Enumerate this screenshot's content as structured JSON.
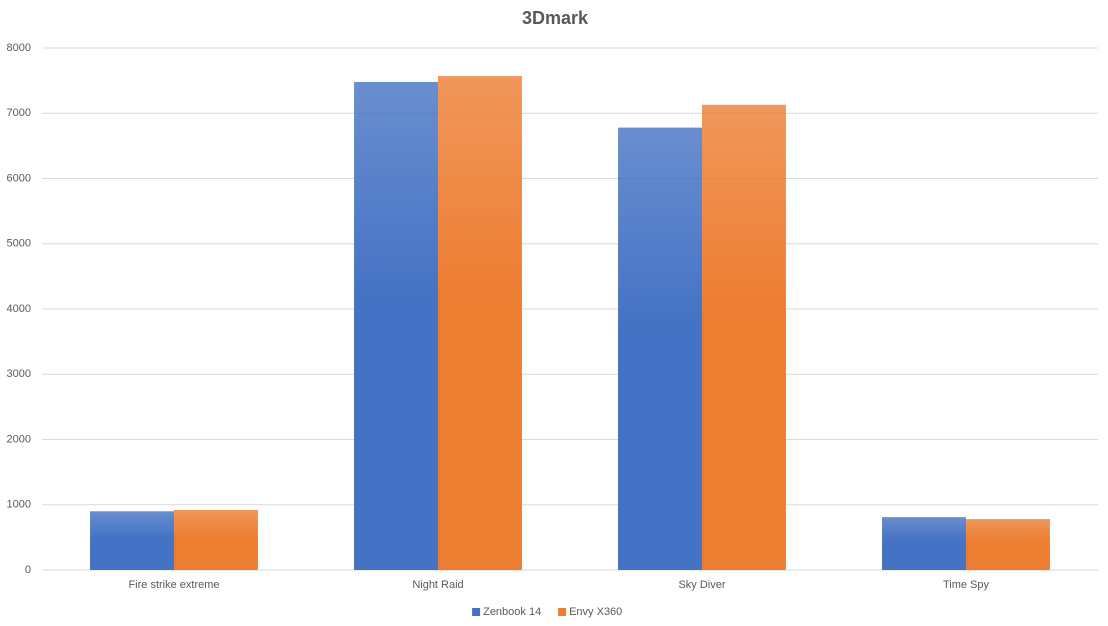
{
  "chart_data": {
    "type": "bar",
    "title": "3Dmark",
    "categories": [
      "Fire strike extreme",
      "Night Raid",
      "Sky Diver",
      "Time Spy"
    ],
    "series": [
      {
        "name": "Zenbook 14",
        "color": "#4472c4",
        "values": [
          900,
          7480,
          6780,
          810
        ]
      },
      {
        "name": "Envy X360",
        "color": "#ed7d31",
        "values": [
          920,
          7570,
          7130,
          780
        ]
      }
    ],
    "ylim": [
      0,
      8000
    ],
    "yticks": [
      0,
      1000,
      2000,
      3000,
      4000,
      5000,
      6000,
      7000,
      8000
    ],
    "grid": true,
    "legend": "bottom"
  }
}
